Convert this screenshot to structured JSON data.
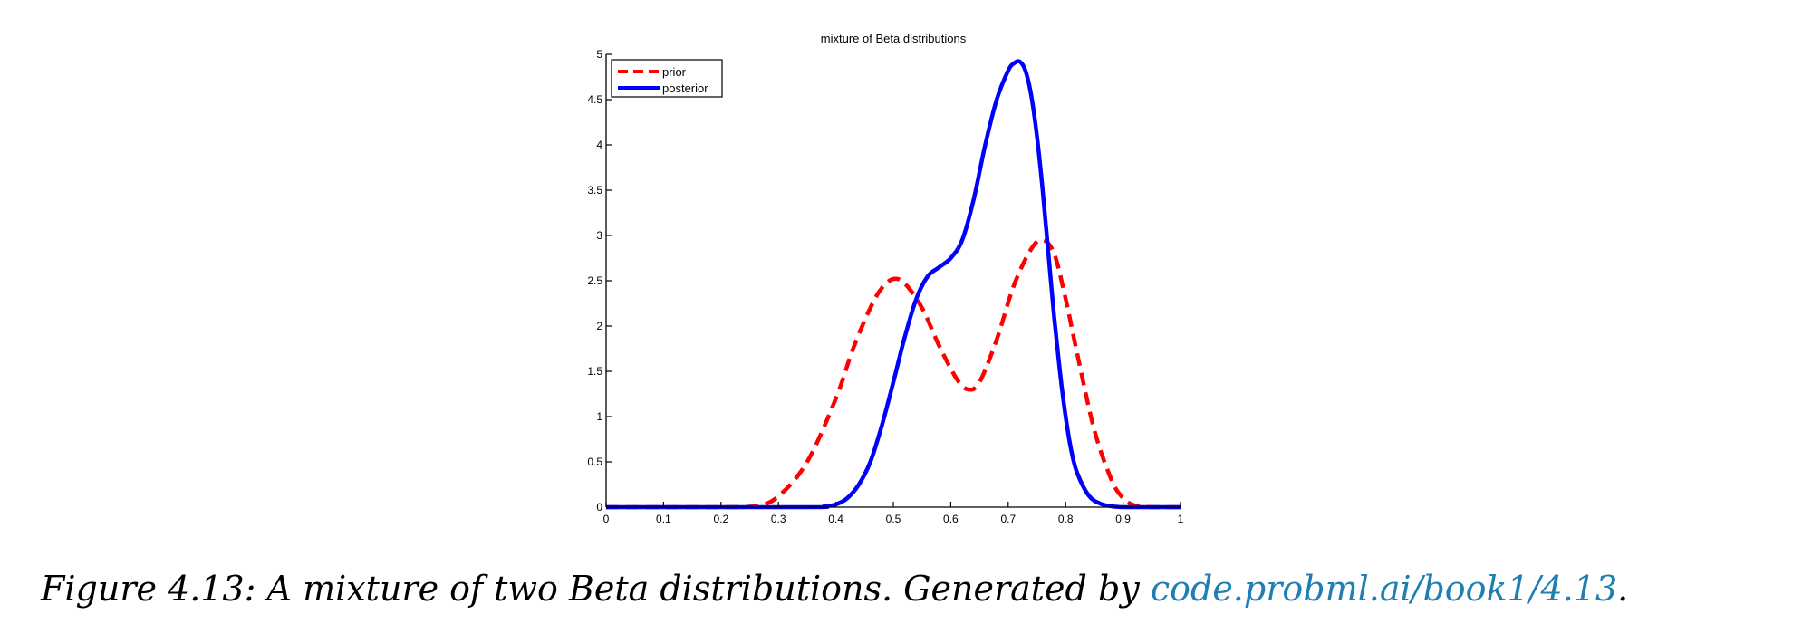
{
  "chart_data": {
    "type": "line",
    "title": "mixture of Beta distributions",
    "xlabel": "",
    "ylabel": "",
    "xlim": [
      0,
      1
    ],
    "ylim": [
      0,
      5
    ],
    "xticks": [
      "0",
      "0.1",
      "0.2",
      "0.3",
      "0.4",
      "0.5",
      "0.6",
      "0.7",
      "0.8",
      "0.9",
      "1"
    ],
    "yticks": [
      "0",
      "0.5",
      "1",
      "1.5",
      "2",
      "2.5",
      "3",
      "3.5",
      "4",
      "4.5",
      "5"
    ],
    "legend_position": "top-left",
    "grid": false,
    "series": [
      {
        "name": "prior",
        "color": "#ff0000",
        "style": "dashed",
        "x": [
          0,
          0.2,
          0.26,
          0.3,
          0.35,
          0.4,
          0.43,
          0.46,
          0.48,
          0.5,
          0.52,
          0.55,
          0.58,
          0.61,
          0.63,
          0.65,
          0.68,
          0.71,
          0.74,
          0.76,
          0.78,
          0.8,
          0.82,
          0.85,
          0.88,
          0.9,
          0.92,
          0.95,
          1
        ],
        "y": [
          0,
          0,
          0.01,
          0.12,
          0.5,
          1.2,
          1.75,
          2.2,
          2.42,
          2.52,
          2.47,
          2.2,
          1.78,
          1.42,
          1.3,
          1.38,
          1.85,
          2.45,
          2.85,
          2.95,
          2.8,
          2.3,
          1.7,
          0.85,
          0.3,
          0.1,
          0.02,
          0,
          0
        ]
      },
      {
        "name": "posterior",
        "color": "#0000ff",
        "style": "solid",
        "x": [
          0,
          0.35,
          0.38,
          0.4,
          0.42,
          0.44,
          0.46,
          0.48,
          0.5,
          0.52,
          0.54,
          0.56,
          0.58,
          0.6,
          0.62,
          0.64,
          0.66,
          0.68,
          0.7,
          0.71,
          0.72,
          0.73,
          0.74,
          0.75,
          0.76,
          0.77,
          0.78,
          0.79,
          0.8,
          0.81,
          0.82,
          0.84,
          0.86,
          0.88,
          0.9,
          0.95,
          1
        ],
        "y": [
          0,
          0,
          0.01,
          0.03,
          0.1,
          0.25,
          0.5,
          0.9,
          1.38,
          1.88,
          2.3,
          2.55,
          2.65,
          2.75,
          2.95,
          3.4,
          4.0,
          4.5,
          4.82,
          4.9,
          4.92,
          4.82,
          4.55,
          4.1,
          3.5,
          2.8,
          2.1,
          1.5,
          1.0,
          0.62,
          0.38,
          0.13,
          0.04,
          0.01,
          0,
          0,
          0
        ]
      }
    ]
  },
  "caption": {
    "text": "Figure 4.13: A mixture of two Beta distributions. Generated by ",
    "link": "code.probml.ai/book1/4.13",
    "end": "."
  }
}
